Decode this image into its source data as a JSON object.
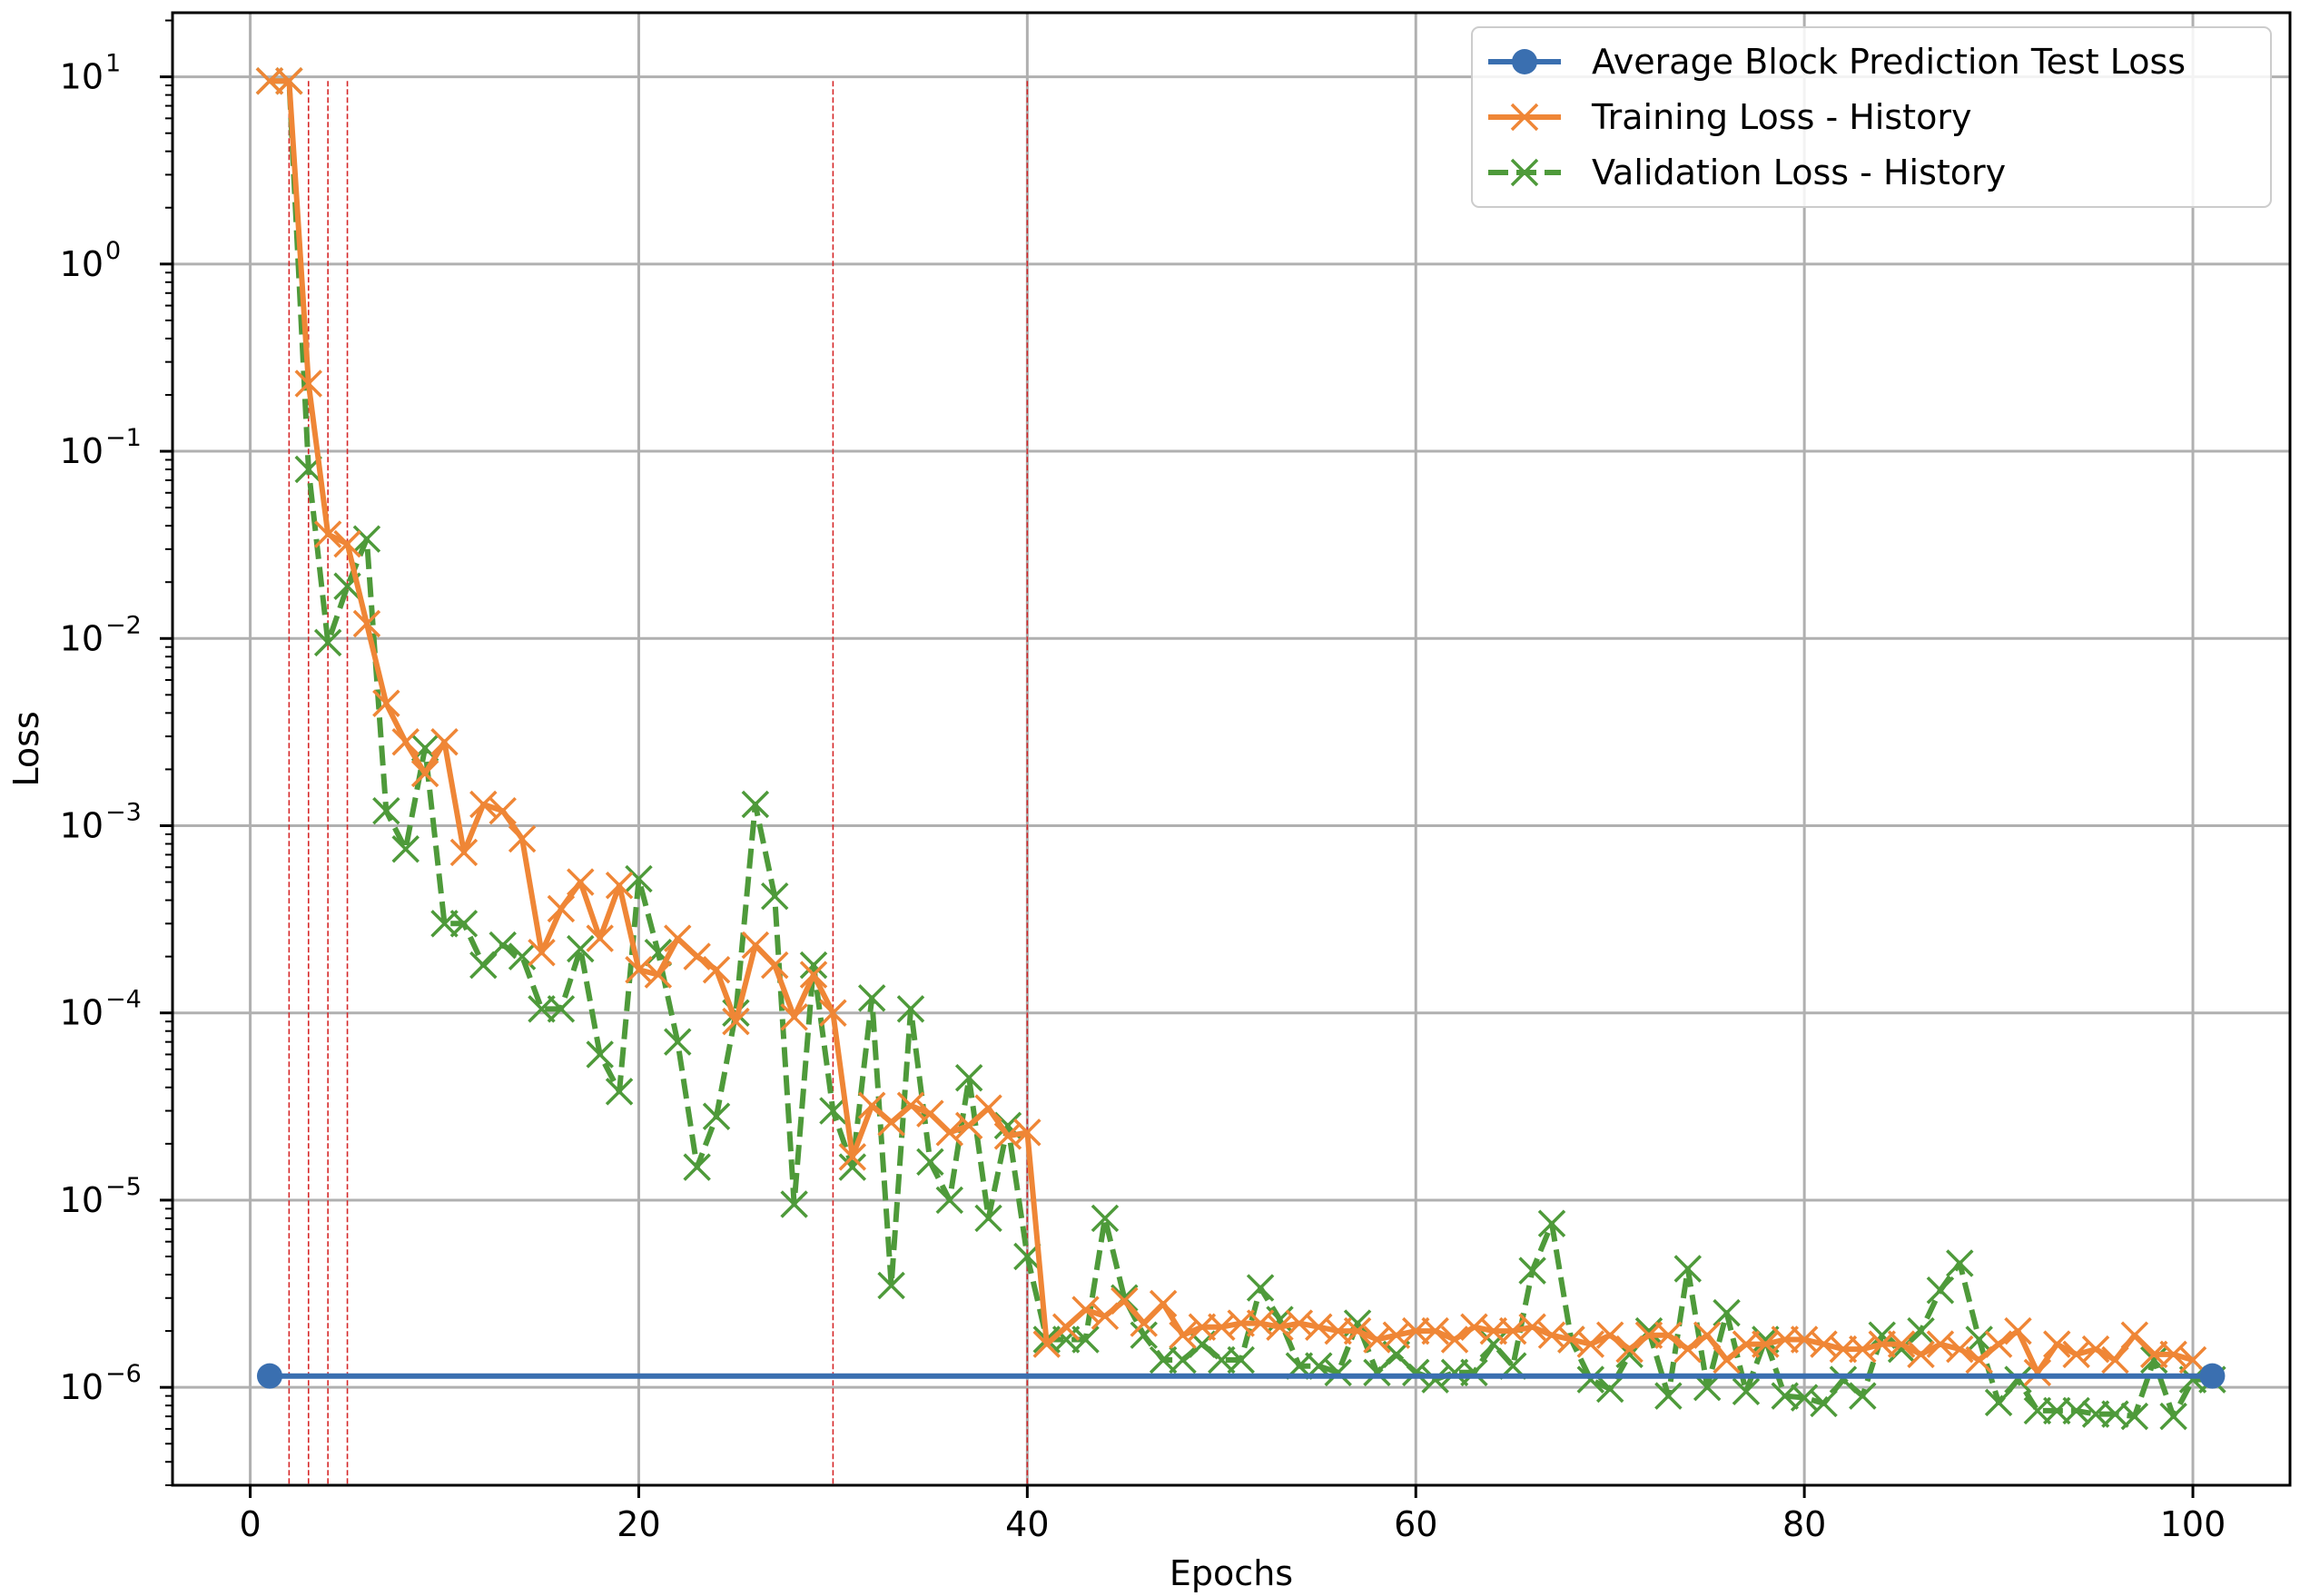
{
  "chart_data": {
    "type": "line",
    "title": "",
    "xlabel": "Epochs",
    "ylabel": "Loss",
    "yscale": "log",
    "xlim": [
      -4,
      105
    ],
    "ylim": [
      3e-07,
      22
    ],
    "grid": true,
    "legend_position": "upper right",
    "x_ticks": [
      0,
      20,
      40,
      60,
      80,
      100
    ],
    "y_ticks": [
      {
        "value": 10,
        "base": "10",
        "exp": "1"
      },
      {
        "value": 1,
        "base": "10",
        "exp": "0"
      },
      {
        "value": 0.1,
        "base": "10",
        "exp": "−1"
      },
      {
        "value": 0.01,
        "base": "10",
        "exp": "−2"
      },
      {
        "value": 0.001,
        "base": "10",
        "exp": "−3"
      },
      {
        "value": 0.0001,
        "base": "10",
        "exp": "−4"
      },
      {
        "value": 1e-05,
        "base": "10",
        "exp": "−5"
      },
      {
        "value": 1e-06,
        "base": "10",
        "exp": "−6"
      }
    ],
    "vertical_markers": {
      "x": [
        2,
        3,
        4,
        5,
        30,
        40
      ],
      "color": "#d62728"
    },
    "series": [
      {
        "name": "Average Block Prediction Test Loss",
        "color": "#3a6fb0",
        "style": "solid",
        "marker": "circle",
        "x": [
          1,
          101
        ],
        "y": [
          1.15e-06,
          1.15e-06
        ]
      },
      {
        "name": "Training Loss - History",
        "color": "#ef8636",
        "style": "solid",
        "marker": "x",
        "x": [
          1,
          2,
          3,
          4,
          5,
          6,
          7,
          8,
          9,
          10,
          11,
          12,
          13,
          14,
          15,
          16,
          17,
          18,
          19,
          20,
          21,
          22,
          23,
          24,
          25,
          26,
          27,
          28,
          29,
          30,
          31,
          32,
          33,
          34,
          35,
          36,
          37,
          38,
          39,
          40,
          41,
          42,
          43,
          44,
          45,
          46,
          47,
          48,
          49,
          50,
          51,
          52,
          53,
          54,
          55,
          56,
          57,
          58,
          59,
          60,
          61,
          62,
          63,
          64,
          65,
          66,
          67,
          68,
          69,
          70,
          71,
          72,
          73,
          74,
          75,
          76,
          77,
          78,
          79,
          80,
          81,
          82,
          83,
          84,
          85,
          86,
          87,
          88,
          89,
          90,
          91,
          92,
          93,
          94,
          95,
          96,
          97,
          98,
          99,
          100
        ],
        "y": [
          9.5,
          9.5,
          0.23,
          0.036,
          0.032,
          0.012,
          0.0045,
          0.0028,
          0.0019,
          0.0028,
          0.00072,
          0.0013,
          0.0012,
          0.00085,
          0.00021,
          0.00036,
          0.0005,
          0.00025,
          0.00048,
          0.00017,
          0.00016,
          0.00025,
          0.0002,
          0.00017,
          9e-05,
          0.00023,
          0.00018,
          9.5e-05,
          0.00016,
          0.0001,
          1.7e-05,
          3.2e-05,
          2.6e-05,
          3.2e-05,
          2.9e-05,
          2.3e-05,
          2.5e-05,
          3.1e-05,
          2.2e-05,
          2.3e-05,
          1.7e-06,
          2.1e-06,
          2.6e-06,
          2.4e-06,
          2.9e-06,
          2.2e-06,
          2.8e-06,
          1.9e-06,
          2.1e-06,
          2.1e-06,
          2.2e-06,
          2.2e-06,
          2.1e-06,
          2.2e-06,
          2.1e-06,
          2e-06,
          2e-06,
          1.8e-06,
          1.9e-06,
          2e-06,
          2e-06,
          1.8e-06,
          2.1e-06,
          2e-06,
          2e-06,
          2.1e-06,
          1.9e-06,
          1.8e-06,
          1.7e-06,
          1.9e-06,
          1.6e-06,
          1.9e-06,
          1.9e-06,
          1.6e-06,
          1.9e-06,
          1.4e-06,
          1.7e-06,
          1.7e-06,
          1.8e-06,
          1.8e-06,
          1.7e-06,
          1.6e-06,
          1.6e-06,
          1.7e-06,
          1.7e-06,
          1.5e-06,
          1.7e-06,
          1.6e-06,
          1.4e-06,
          1.7e-06,
          2e-06,
          1.2e-06,
          1.7e-06,
          1.5e-06,
          1.6e-06,
          1.4e-06,
          1.9e-06,
          1.5e-06,
          1.5e-06,
          1.4e-06
        ]
      },
      {
        "name": "Validation Loss - History",
        "color": "#4e9a3a",
        "style": "dashed",
        "marker": "x",
        "x": [
          1,
          2,
          3,
          4,
          5,
          6,
          7,
          8,
          9,
          10,
          11,
          12,
          13,
          14,
          15,
          16,
          17,
          18,
          19,
          20,
          21,
          22,
          23,
          24,
          25,
          26,
          27,
          28,
          29,
          30,
          31,
          32,
          33,
          34,
          35,
          36,
          37,
          38,
          39,
          40,
          41,
          42,
          43,
          44,
          45,
          46,
          47,
          48,
          49,
          50,
          51,
          52,
          53,
          54,
          55,
          56,
          57,
          58,
          59,
          60,
          61,
          62,
          63,
          64,
          65,
          66,
          67,
          68,
          69,
          70,
          71,
          72,
          73,
          74,
          75,
          76,
          77,
          78,
          79,
          80,
          81,
          82,
          83,
          84,
          85,
          86,
          87,
          88,
          89,
          90,
          91,
          92,
          93,
          94,
          95,
          96,
          97,
          98,
          99,
          100,
          101
        ],
        "y": [
          9.5,
          9.5,
          0.08,
          0.0095,
          0.019,
          0.034,
          0.0012,
          0.00075,
          0.0026,
          0.0003,
          0.0003,
          0.00018,
          0.00023,
          0.0002,
          0.000105,
          0.000105,
          0.00022,
          6e-05,
          3.8e-05,
          0.00052,
          0.00021,
          7e-05,
          1.5e-05,
          2.8e-05,
          0.0001,
          0.0013,
          0.00042,
          9.5e-06,
          0.00018,
          3e-05,
          1.5e-05,
          0.00012,
          3.5e-06,
          0.000105,
          1.6e-05,
          1e-05,
          4.5e-05,
          8e-06,
          2.5e-05,
          5e-06,
          1.8e-06,
          1.8e-06,
          1.8e-06,
          8e-06,
          3e-06,
          1.9e-06,
          1.4e-06,
          1.4e-06,
          1.7e-06,
          1.4e-06,
          1.4e-06,
          3.4e-06,
          2.3e-06,
          1.3e-06,
          1.3e-06,
          1.2e-06,
          2.2e-06,
          1.2e-06,
          1.5e-06,
          1.2e-06,
          1.1e-06,
          1.2e-06,
          1.2e-06,
          1.7e-06,
          1.3e-06,
          4.2e-06,
          7.5e-06,
          1.8e-06,
          1.1e-06,
          9.8e-07,
          1.5e-06,
          2e-06,
          9e-07,
          4.3e-06,
          1e-06,
          2.5e-06,
          9.5e-07,
          1.8e-06,
          9e-07,
          8.8e-07,
          8.2e-07,
          1.1e-06,
          9e-07,
          1.9e-06,
          1.6e-06,
          2e-06,
          3.3e-06,
          4.6e-06,
          1.8e-06,
          8.3e-07,
          1.1e-06,
          7.5e-07,
          7.5e-07,
          7.5e-07,
          7.2e-07,
          7.2e-07,
          7e-07,
          1.4e-06,
          7e-07,
          1.1e-06,
          1.1e-06
        ]
      }
    ]
  }
}
